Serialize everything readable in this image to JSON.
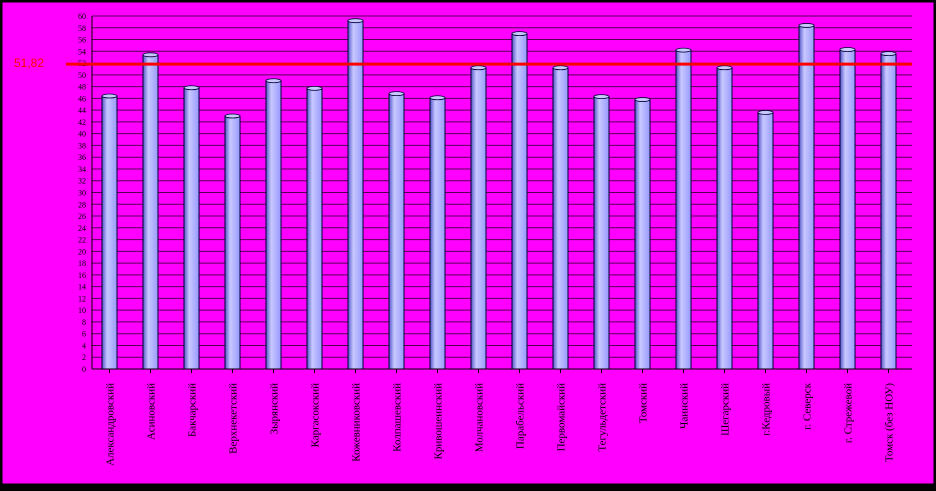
{
  "chart_data": {
    "type": "bar",
    "categories": [
      "Александровский",
      "Асиновский",
      "Бакчарский",
      "Верхнекетский",
      "Зырянский",
      "Каргасокский",
      "Кожевниковский",
      "Колпашевский",
      "Кривошеинский",
      "Молчановский",
      "Парабельский",
      "Первомайский",
      "Тегульдетский",
      "Томский",
      "Чаинский",
      "Шегарский",
      "г.Кедровый",
      "г. Северск",
      "г. Стрежевой",
      "Томск (без НОУ)"
    ],
    "series": [
      {
        "values": [
          46.4,
          53.4,
          47.8,
          43.0,
          49.0,
          47.7,
          59.2,
          46.8,
          46.1,
          51.2,
          57.0,
          51.2,
          46.3,
          45.8,
          54.2,
          51.2,
          43.6,
          58.4,
          54.3,
          53.6
        ]
      }
    ],
    "reference_line": {
      "value": 51.82,
      "label": "51,82",
      "color": "#ff0000"
    },
    "ylim": [
      0,
      60
    ],
    "yticks": [
      "0",
      "2",
      "4",
      "6",
      "8",
      "10",
      "12",
      "14",
      "16",
      "18",
      "20",
      "22",
      "24",
      "26",
      "28",
      "30",
      "32",
      "34",
      "36",
      "38",
      "40",
      "42",
      "44",
      "46",
      "48",
      "50",
      "52",
      "54",
      "56",
      "58",
      "60"
    ],
    "title": "",
    "xlabel": "",
    "ylabel": "",
    "grid": true,
    "colors": {
      "background": "#ff00ff",
      "frame": "#000000",
      "bar_fill": "#9999ff",
      "bar_light": "#c8c8ff",
      "bar_dark": "#5555cc",
      "bar_outline": "#000033",
      "gridline": "#550055",
      "axis_text": "#000000"
    }
  }
}
